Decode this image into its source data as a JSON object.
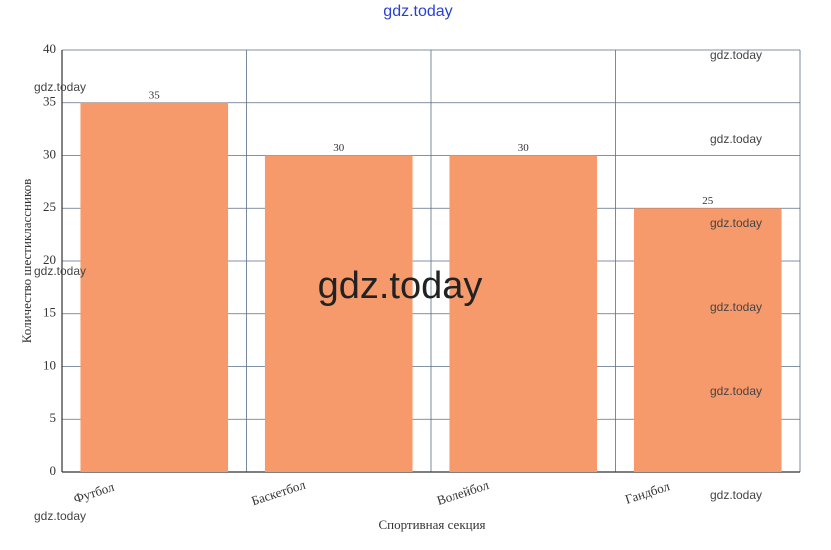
{
  "chart_data": {
    "type": "bar",
    "categories": [
      "Футбол",
      "Баскетбол",
      "Волейбол",
      "Гандбол"
    ],
    "values": [
      35,
      30,
      30,
      25
    ],
    "color": "#f79a6b",
    "x_label": "Спортивная секция",
    "y_label": "Количество шестиклассников",
    "ylim": [
      0,
      40
    ],
    "yticks": [
      0,
      5,
      10,
      15,
      20,
      25,
      30,
      35,
      40
    ],
    "grid": true
  },
  "watermarks": [
    "gdz.today",
    "gdz.today",
    "gdz.today",
    "gdz.today",
    "gdz.today",
    "gdz.today",
    "gdz.today",
    "gdz.today",
    "gdz.today",
    "gdz.today",
    "gdz.today"
  ]
}
